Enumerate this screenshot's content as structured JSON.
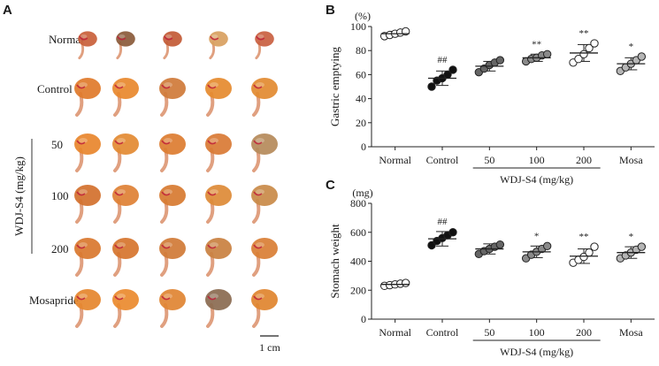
{
  "panel_a": {
    "letter": "A",
    "rows": [
      "Normal",
      "Control",
      "50",
      "100",
      "200",
      "Mosapride"
    ],
    "dose_label": "WDJ-S4 (mg/kg)",
    "scale_label": "1 cm"
  },
  "chart_data": [
    {
      "type": "scatter",
      "panel": "B",
      "ylabel": "Gastric emptying",
      "unit": "(%)",
      "ylim": [
        0,
        100
      ],
      "yticks": [
        0,
        20,
        40,
        60,
        80,
        100
      ],
      "categories": [
        "Normal",
        "Control",
        "50",
        "100",
        "200",
        "Mosa"
      ],
      "group_label": "WDJ-S4 (mg/kg)",
      "colors": [
        "#ffffff",
        "#111111",
        "#666666",
        "#8a8a8a",
        "#ffffff",
        "#b5b5b5"
      ],
      "means": [
        94,
        57,
        67,
        74,
        78,
        69
      ],
      "sem": [
        2,
        6,
        4,
        3,
        7,
        5
      ],
      "points": [
        [
          92,
          93,
          94,
          95,
          96
        ],
        [
          50,
          55,
          57,
          60,
          64
        ],
        [
          62,
          65,
          68,
          70,
          72
        ],
        [
          71,
          73,
          74,
          76,
          77
        ],
        [
          70,
          73,
          77,
          82,
          86
        ],
        [
          63,
          66,
          69,
          72,
          75
        ]
      ],
      "annotations": [
        "",
        "##",
        "",
        "**",
        "**",
        "*"
      ]
    },
    {
      "type": "scatter",
      "panel": "C",
      "ylabel": "Stomach weight",
      "unit": "(mg)",
      "ylim": [
        0,
        800
      ],
      "yticks": [
        0,
        200,
        400,
        600,
        800
      ],
      "categories": [
        "Normal",
        "Control",
        "50",
        "100",
        "200",
        "Mosa"
      ],
      "group_label": "WDJ-S4 (mg/kg)",
      "colors": [
        "#ffffff",
        "#111111",
        "#666666",
        "#8a8a8a",
        "#ffffff",
        "#b5b5b5"
      ],
      "means": [
        240,
        555,
        485,
        465,
        435,
        460
      ],
      "sem": [
        15,
        50,
        35,
        40,
        50,
        40
      ],
      "points": [
        [
          230,
          235,
          240,
          245,
          250
        ],
        [
          510,
          540,
          560,
          580,
          600
        ],
        [
          450,
          470,
          485,
          500,
          515
        ],
        [
          420,
          445,
          465,
          485,
          505
        ],
        [
          390,
          410,
          430,
          460,
          500
        ],
        [
          420,
          440,
          460,
          480,
          500
        ]
      ],
      "annotations": [
        "",
        "##",
        "",
        "*",
        "**",
        "*"
      ]
    }
  ]
}
